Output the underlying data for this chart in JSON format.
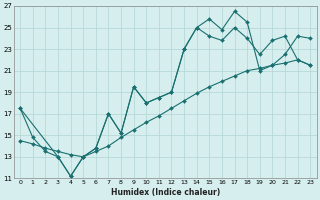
{
  "xlabel": "Humidex (Indice chaleur)",
  "bg_color": "#d6eeee",
  "grid_color": "#b8d8d8",
  "line_color": "#1a7070",
  "xlim": [
    -0.5,
    23.5
  ],
  "ylim": [
    11,
    27
  ],
  "xticks": [
    0,
    1,
    2,
    3,
    4,
    5,
    6,
    7,
    8,
    9,
    10,
    11,
    12,
    13,
    14,
    15,
    16,
    17,
    18,
    19,
    20,
    21,
    22,
    23
  ],
  "yticks": [
    11,
    13,
    15,
    17,
    19,
    21,
    23,
    25,
    27
  ],
  "series": [
    {
      "x": [
        0,
        1,
        2,
        3,
        4,
        5,
        6,
        7,
        8,
        9,
        10,
        11,
        12,
        13,
        14,
        15,
        16,
        17,
        18,
        19,
        20,
        21,
        22,
        23
      ],
      "y": [
        17.5,
        14.8,
        13.5,
        13.0,
        11.2,
        13.0,
        13.8,
        17.0,
        15.2,
        19.5,
        18.0,
        18.5,
        19.0,
        23.0,
        25.0,
        25.8,
        24.8,
        26.5,
        25.5,
        21.0,
        21.5,
        22.5,
        24.2,
        24.0
      ]
    },
    {
      "x": [
        0,
        3,
        4,
        5,
        6,
        7,
        8,
        9,
        10,
        11,
        12,
        13,
        14,
        15,
        16,
        17,
        18,
        19,
        20,
        21,
        22,
        23
      ],
      "y": [
        17.5,
        13.0,
        11.2,
        13.0,
        13.8,
        17.0,
        15.2,
        19.5,
        18.0,
        18.5,
        19.0,
        23.0,
        25.0,
        24.2,
        23.8,
        25.0,
        24.0,
        22.5,
        23.8,
        24.2,
        22.0,
        21.5
      ]
    },
    {
      "x": [
        0,
        1,
        2,
        3,
        4,
        5,
        6,
        7,
        8,
        9,
        10,
        11,
        12,
        13,
        14,
        15,
        16,
        17,
        18,
        19,
        20,
        21,
        22,
        23
      ],
      "y": [
        14.5,
        14.2,
        13.8,
        13.5,
        13.2,
        13.0,
        13.5,
        14.0,
        14.8,
        15.5,
        16.2,
        16.8,
        17.5,
        18.2,
        18.9,
        19.5,
        20.0,
        20.5,
        21.0,
        21.2,
        21.5,
        21.7,
        22.0,
        21.5
      ]
    }
  ]
}
